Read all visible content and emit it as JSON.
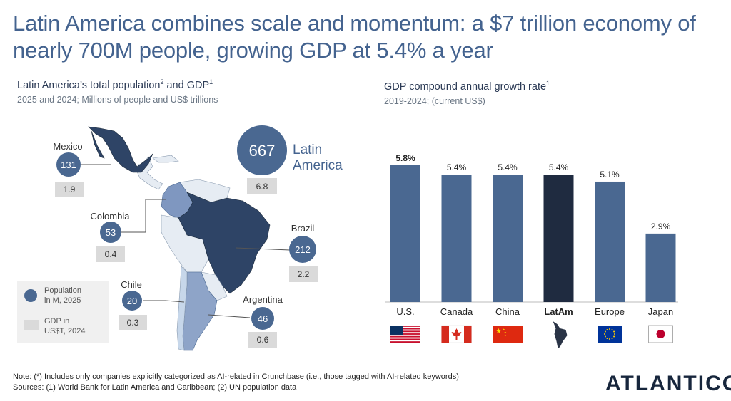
{
  "title": "Latin America combines scale and momentum: a $7 trillion economy of nearly 700M people, growing GDP at 5.4% a year",
  "left_panel": {
    "title": "Latin America’s total population",
    "title_sup1": "2",
    "title_mid": " and GDP",
    "title_sup2": "1",
    "subtitle": "2025 and 2024; Millions of people and US$ trillions",
    "total": {
      "population": "667",
      "gdp": "6.8",
      "label_line1": "Latin",
      "label_line2": "America"
    },
    "countries": [
      {
        "name": "Mexico",
        "population": "131",
        "gdp": "1.9"
      },
      {
        "name": "Colombia",
        "population": "53",
        "gdp": "0.4"
      },
      {
        "name": "Brazil",
        "population": "212",
        "gdp": "2.2"
      },
      {
        "name": "Chile",
        "population": "20",
        "gdp": "0.3"
      },
      {
        "name": "Argentina",
        "population": "46",
        "gdp": "0.6"
      }
    ],
    "legend": {
      "population_line1": "Population",
      "population_line2": "in M, 2025",
      "gdp_line1": "GDP in",
      "gdp_line2": "US$T, 2024"
    }
  },
  "colors": {
    "bar": "#4a6891",
    "bar_highlight": "#1f2b40",
    "bubble": "#4a6891",
    "gdp_box": "#dadada",
    "title": "#44638f"
  },
  "chart_data": {
    "type": "bar",
    "title": "GDP compound annual growth rate",
    "title_sup": "1",
    "subtitle": "2019-2024; (current US$)",
    "categories": [
      "U.S.",
      "Canada",
      "China",
      "LatAm",
      "Europe",
      "Japan"
    ],
    "values": [
      5.8,
      5.4,
      5.4,
      5.4,
      5.1,
      2.9
    ],
    "labels": [
      "5.8%",
      "5.4%",
      "5.4%",
      "5.4%",
      "5.1%",
      "2.9%"
    ],
    "highlight": "LatAm",
    "ylim": [
      0,
      7
    ],
    "xlabel": "",
    "ylabel": "",
    "flags": [
      "us-flag",
      "canada-flag",
      "china-flag",
      "latam-map",
      "europe-flag",
      "japan-flag"
    ]
  },
  "footer": {
    "note": "Note: (*) Includes only companies explicitly categorized as AI-related in Crunchbase (i.e., those tagged with AI-related keywords)",
    "sources": "Sources: (1) World Bank for Latin America and Caribbean; (2) UN population data",
    "logo": "ATLANTICO"
  }
}
